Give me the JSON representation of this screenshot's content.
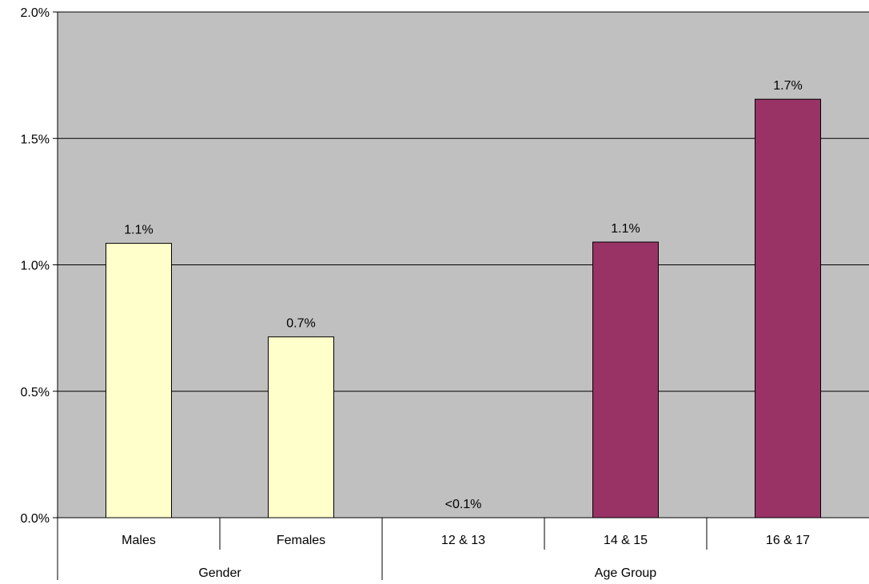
{
  "chart_data": {
    "type": "bar",
    "categories": [
      "Males",
      "Females",
      "12 & 13",
      "14 & 15",
      "16 & 17"
    ],
    "values": [
      1.085,
      0.715,
      0.0,
      1.09,
      1.655
    ],
    "value_labels": [
      "1.1%",
      "0.7%",
      "<0.1%",
      "1.1%",
      "1.7%"
    ],
    "groups": [
      {
        "label": "Gender",
        "categories": [
          "Males",
          "Females"
        ],
        "color": "#ffffcc"
      },
      {
        "label": "Age Group",
        "categories": [
          "12 & 13",
          "14 & 15",
          "16 & 17"
        ],
        "color": "#993366"
      }
    ],
    "ylim": [
      0,
      2.0
    ],
    "yticks": [
      0,
      0.5,
      1.0,
      1.5,
      2.0
    ],
    "ytick_labels": [
      "0.0%",
      "0.5%",
      "1.0%",
      "1.5%",
      "2.0%"
    ],
    "grid": true,
    "plot_background": "#c0c0c0",
    "bar_outline": "#000000"
  }
}
